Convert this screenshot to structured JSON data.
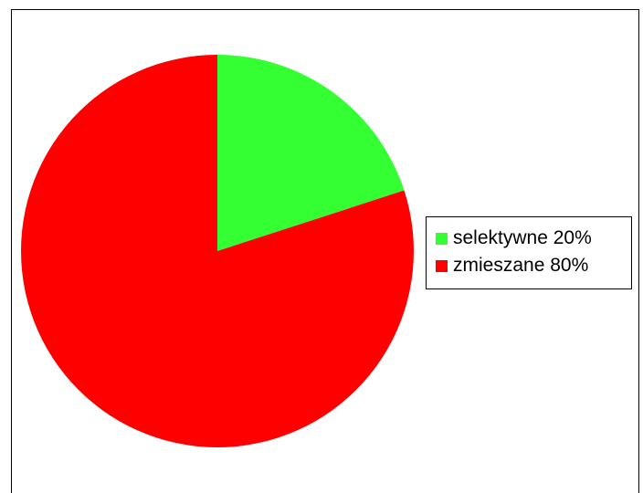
{
  "chart_data": {
    "type": "pie",
    "slices": [
      {
        "label": "selektywne 20%",
        "value": 20,
        "color": "#33ff33"
      },
      {
        "label": "zmieszane 80%",
        "value": 80,
        "color": "#ff0000"
      }
    ],
    "start_angle_deg": 0,
    "direction": "clockwise",
    "legend_position": "right"
  }
}
